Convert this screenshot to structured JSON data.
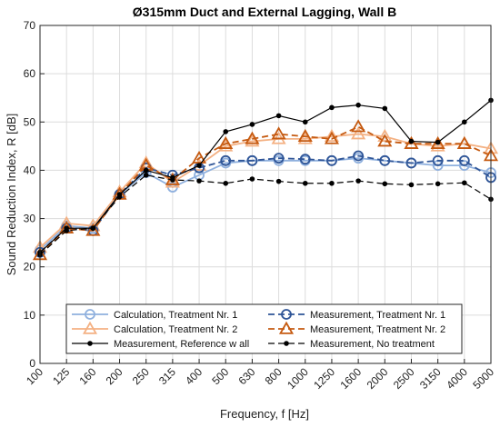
{
  "chart_data": {
    "type": "line",
    "title": "Ø315mm Duct and External Lagging, Wall B",
    "xlabel": "Frequency, f [Hz]",
    "ylabel": "Sound Reduction Index, R [dB]",
    "categories": [
      "100",
      "125",
      "160",
      "200",
      "250",
      "315",
      "400",
      "500",
      "630",
      "800",
      "1000",
      "1250",
      "1600",
      "2000",
      "2500",
      "3150",
      "4000",
      "5000"
    ],
    "ylim": [
      0,
      70
    ],
    "yticks": [
      0,
      10,
      20,
      30,
      40,
      50,
      60,
      70
    ],
    "grid": true,
    "legend_position": "bottom-center",
    "series": [
      {
        "name": "Calculation, Treatment Nr. 1",
        "color": "#8fb0de",
        "line": "solid",
        "marker": "circle",
        "values": [
          23.5,
          28.5,
          28.0,
          35.0,
          39.5,
          36.5,
          39.0,
          41.5,
          42.0,
          42.0,
          42.0,
          42.0,
          42.5,
          42.0,
          41.5,
          41.0,
          41.0,
          39.5
        ]
      },
      {
        "name": "Calculation, Treatment Nr. 2",
        "color": "#f4b183",
        "line": "solid",
        "marker": "triangle",
        "values": [
          24.0,
          29.0,
          28.5,
          35.5,
          41.5,
          37.5,
          41.0,
          45.0,
          46.0,
          46.5,
          46.5,
          47.0,
          47.5,
          47.0,
          45.5,
          45.0,
          45.5,
          44.5
        ]
      },
      {
        "name": "Measurement, Treatment Nr. 1",
        "color": "#2f5597",
        "line": "dashed",
        "marker": "circle",
        "values": [
          23.0,
          28.0,
          27.5,
          35.0,
          40.5,
          39.0,
          40.5,
          42.0,
          42.0,
          42.5,
          42.3,
          42.0,
          43.0,
          42.0,
          41.5,
          42.0,
          42.0,
          38.5
        ]
      },
      {
        "name": "Measurement, Treatment Nr. 2",
        "color": "#c55a11",
        "line": "dashed",
        "marker": "triangle",
        "values": [
          22.5,
          28.0,
          27.5,
          35.0,
          41.0,
          38.0,
          42.5,
          45.5,
          46.5,
          47.5,
          47.0,
          46.5,
          49.0,
          46.0,
          45.5,
          45.5,
          45.5,
          43.0
        ]
      },
      {
        "name": "Measurement, Reference w all",
        "color": "#000000",
        "line": "solid",
        "marker": "dot",
        "values": [
          23.0,
          28.0,
          28.0,
          35.0,
          40.0,
          38.5,
          41.0,
          48.0,
          49.5,
          51.3,
          50.0,
          53.0,
          53.5,
          52.8,
          46.0,
          45.8,
          50.0,
          54.5
        ]
      },
      {
        "name": "Measurement, No treatment",
        "color": "#000000",
        "line": "dashed",
        "marker": "dot",
        "values": [
          22.5,
          27.5,
          28.0,
          34.5,
          39.0,
          38.0,
          37.8,
          37.3,
          38.2,
          37.7,
          37.3,
          37.3,
          37.8,
          37.2,
          37.0,
          37.2,
          37.4,
          34.0
        ]
      }
    ]
  }
}
